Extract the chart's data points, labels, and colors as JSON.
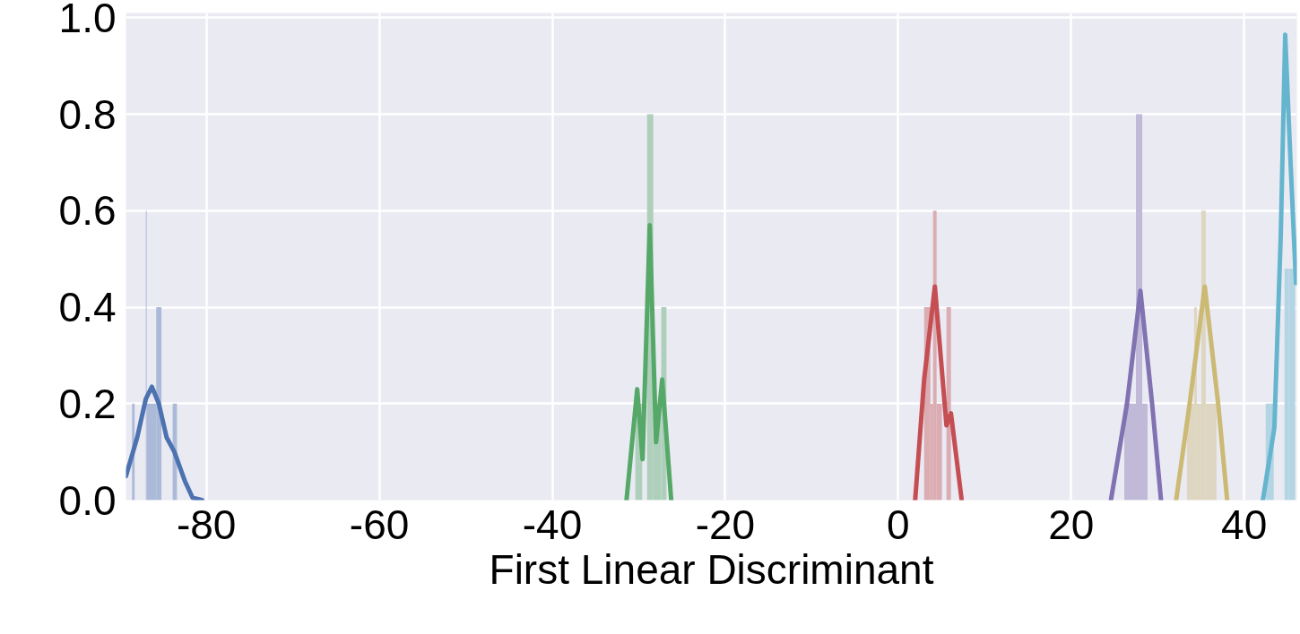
{
  "chart_data": {
    "type": "histogram",
    "xlabel": "First Linear Discriminant",
    "xlim": [
      -89.3,
      46.1
    ],
    "ylim": [
      0,
      1.01
    ],
    "xticks": [
      -80,
      -60,
      -40,
      -20,
      0,
      20,
      40
    ],
    "yticks": [
      {
        "value": 0,
        "label": "0.0"
      },
      {
        "value": 0.2,
        "label": "0.2"
      },
      {
        "value": 0.4,
        "label": "0.4"
      },
      {
        "value": 0.6,
        "label": "0.6"
      },
      {
        "value": 0.8,
        "label": "0.8"
      },
      {
        "value": 1.0,
        "label": "1.0"
      }
    ],
    "grid": true,
    "series": [
      {
        "color": "#abbad8",
        "bins": [
          -88.6,
          -88.3,
          -87.0,
          -86.9,
          -85.8,
          -85.2,
          -83.9,
          -83.4
        ],
        "values": [
          0.2,
          0,
          0.6,
          0.2,
          0.4,
          0,
          0.2
        ]
      },
      {
        "color": "#aed0bb",
        "bins": [
          -30.4,
          -29.6,
          -29.04,
          -28.32,
          -27.4,
          -26.8
        ],
        "values": [
          0.2,
          0,
          0.8,
          0.2,
          0.4
        ]
      },
      {
        "color": "#dbacb2",
        "bins": [
          3.0,
          3.72,
          4.03,
          4.44,
          5.06,
          5.58,
          6.1
        ],
        "values": [
          0.4,
          0.2,
          0.6,
          0.2,
          0,
          0.4
        ]
      },
      {
        "color": "#c0bad8",
        "bins": [
          26.15,
          27.49,
          28.22,
          28.84
        ],
        "values": [
          0.2,
          0.8,
          0.2
        ]
      },
      {
        "color": "#ded6c0",
        "bins": [
          33.39,
          34.22,
          34.53,
          35.05,
          35.56,
          36.8
        ],
        "values": [
          0.2,
          0.4,
          0.2,
          0.6,
          0.2
        ]
      },
      {
        "color": "#b4d5e3",
        "bins": [
          42.5,
          43.43,
          44.67,
          45.18,
          45.9
        ],
        "values": [
          0.2,
          0,
          0.48,
          0.48
        ]
      },
      {
        "type": "line",
        "color": "#4c72b0",
        "x": [
          -89.3,
          -88,
          -87,
          -86.3,
          -85.5,
          -84.6,
          -83.7,
          -82.5,
          -81.6,
          -80.5
        ],
        "values": [
          0.05,
          0.13,
          0.21,
          0.235,
          0.2,
          0.13,
          0.1,
          0.04,
          0.005,
          0
        ]
      },
      {
        "type": "line",
        "color": "#55a868",
        "x": [
          -31.42,
          -30.18,
          -29.56,
          -28.73,
          -28.0,
          -27.29,
          -26.25
        ],
        "values": [
          0,
          0.23,
          0.085,
          0.57,
          0.12,
          0.25,
          0
        ]
      },
      {
        "type": "line",
        "color": "#c44e52",
        "x": [
          1.96,
          3.0,
          4.24,
          5.58,
          6.1,
          7.34
        ],
        "values": [
          0,
          0.25,
          0.443,
          0.155,
          0.18,
          0
        ]
      },
      {
        "type": "line",
        "color": "#8172b2",
        "x": [
          24.6,
          26.46,
          28.01,
          29.36,
          30.39
        ],
        "values": [
          0,
          0.2,
          0.434,
          0.2,
          0
        ]
      },
      {
        "type": "line",
        "color": "#ccb974",
        "x": [
          32.14,
          33.7,
          35.45,
          37.0,
          38.04
        ],
        "values": [
          0,
          0.2,
          0.443,
          0.2,
          0
        ]
      },
      {
        "type": "line",
        "color": "#64b5cd",
        "x": [
          42.17,
          43.5,
          44.24,
          44.75,
          45.37,
          46.0
        ],
        "values": [
          0,
          0.15,
          0.55,
          0.965,
          0.7,
          0.45
        ]
      }
    ]
  }
}
